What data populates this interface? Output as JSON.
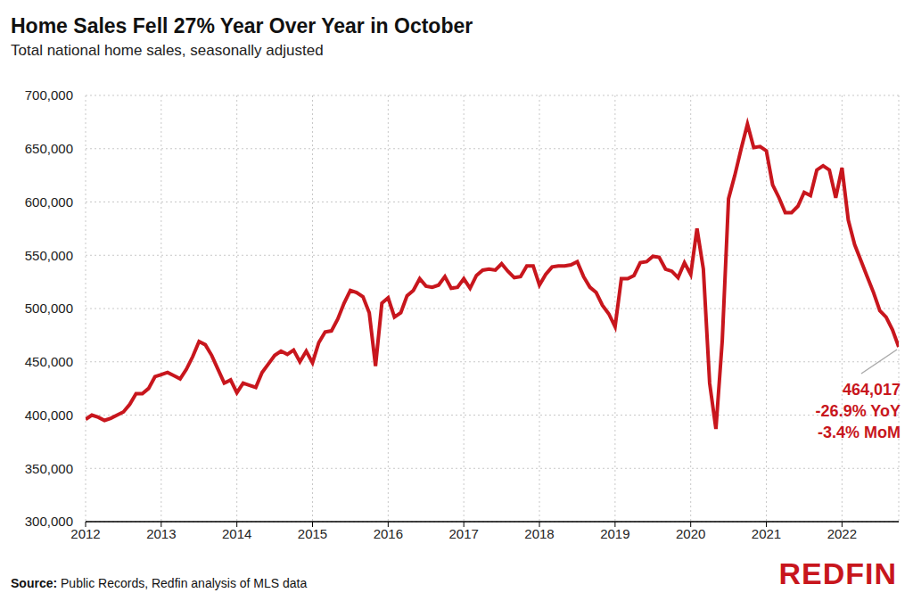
{
  "chart_data": {
    "type": "line",
    "title": "Home Sales Fell 27% Year Over Year in October",
    "subtitle": "Total national home sales, seasonally adjusted",
    "color": "#c8161d",
    "grid": true,
    "xlim": [
      2012,
      2022.75
    ],
    "xticks": [
      2012,
      2013,
      2014,
      2015,
      2016,
      2017,
      2018,
      2019,
      2020,
      2021,
      2022
    ],
    "ylim": [
      300000,
      700000
    ],
    "yticks": [
      {
        "value": 300000,
        "label": "300,000"
      },
      {
        "value": 350000,
        "label": "350,000"
      },
      {
        "value": 400000,
        "label": "400,000"
      },
      {
        "value": 450000,
        "label": "450,000"
      },
      {
        "value": 500000,
        "label": "500,000"
      },
      {
        "value": 550000,
        "label": "550,000"
      },
      {
        "value": 600000,
        "label": "600,000"
      },
      {
        "value": 650000,
        "label": "650,000"
      },
      {
        "value": 700000,
        "label": "700,000"
      }
    ],
    "x": [
      2012,
      2012.083,
      2012.167,
      2012.25,
      2012.333,
      2012.417,
      2012.5,
      2012.583,
      2012.667,
      2012.75,
      2012.833,
      2012.917,
      2013,
      2013.083,
      2013.167,
      2013.25,
      2013.333,
      2013.417,
      2013.5,
      2013.583,
      2013.667,
      2013.75,
      2013.833,
      2013.917,
      2014,
      2014.083,
      2014.167,
      2014.25,
      2014.333,
      2014.417,
      2014.5,
      2014.583,
      2014.667,
      2014.75,
      2014.833,
      2014.917,
      2015,
      2015.083,
      2015.167,
      2015.25,
      2015.333,
      2015.417,
      2015.5,
      2015.583,
      2015.667,
      2015.75,
      2015.833,
      2015.917,
      2016,
      2016.083,
      2016.167,
      2016.25,
      2016.333,
      2016.417,
      2016.5,
      2016.583,
      2016.667,
      2016.75,
      2016.833,
      2016.917,
      2017,
      2017.083,
      2017.167,
      2017.25,
      2017.333,
      2017.417,
      2017.5,
      2017.583,
      2017.667,
      2017.75,
      2017.833,
      2017.917,
      2018,
      2018.083,
      2018.167,
      2018.25,
      2018.333,
      2018.417,
      2018.5,
      2018.583,
      2018.667,
      2018.75,
      2018.833,
      2018.917,
      2019,
      2019.083,
      2019.167,
      2019.25,
      2019.333,
      2019.417,
      2019.5,
      2019.583,
      2019.667,
      2019.75,
      2019.833,
      2019.917,
      2020,
      2020.083,
      2020.167,
      2020.25,
      2020.333,
      2020.417,
      2020.5,
      2020.583,
      2020.667,
      2020.75,
      2020.833,
      2020.917,
      2021,
      2021.083,
      2021.167,
      2021.25,
      2021.333,
      2021.417,
      2021.5,
      2021.583,
      2021.667,
      2021.75,
      2021.833,
      2021.917,
      2022,
      2022.083,
      2022.167,
      2022.25,
      2022.333,
      2022.417,
      2022.5,
      2022.583,
      2022.667,
      2022.75
    ],
    "values": [
      396000,
      400000,
      398000,
      395000,
      397000,
      400000,
      403000,
      410000,
      420000,
      420000,
      425000,
      436000,
      438000,
      440000,
      437000,
      434000,
      443000,
      455000,
      469000,
      466000,
      456000,
      443000,
      430000,
      433000,
      421000,
      430000,
      428000,
      426000,
      440000,
      448000,
      456000,
      460000,
      457000,
      461000,
      450000,
      460000,
      449000,
      468000,
      478000,
      479000,
      490000,
      505000,
      517000,
      515000,
      511000,
      496000,
      446000,
      505000,
      510000,
      492000,
      496000,
      512000,
      517000,
      528000,
      521000,
      520000,
      522000,
      530000,
      519000,
      520000,
      528000,
      519000,
      531000,
      536000,
      537000,
      536000,
      542000,
      535000,
      529000,
      530000,
      540000,
      540000,
      522000,
      532000,
      539000,
      540000,
      540000,
      541000,
      544000,
      530000,
      520000,
      515000,
      503000,
      495000,
      483000,
      528000,
      528000,
      531000,
      543000,
      544000,
      549000,
      548000,
      537000,
      535000,
      529000,
      543000,
      532000,
      575000,
      537000,
      430000,
      387000,
      470000,
      603000,
      625000,
      650000,
      673000,
      651000,
      652000,
      648000,
      616000,
      604000,
      590000,
      590000,
      596000,
      609000,
      606000,
      630000,
      634000,
      630000,
      604000,
      632000,
      583000,
      560000,
      545000,
      530000,
      515000,
      498000,
      492000,
      480000,
      464017
    ],
    "annotation": [
      "464,017",
      "-26.9% YoY",
      "-3.4% MoM"
    ],
    "source_label": "Source:",
    "source": "Public Records, Redfin analysis of MLS data",
    "logo": "REDFIN"
  }
}
